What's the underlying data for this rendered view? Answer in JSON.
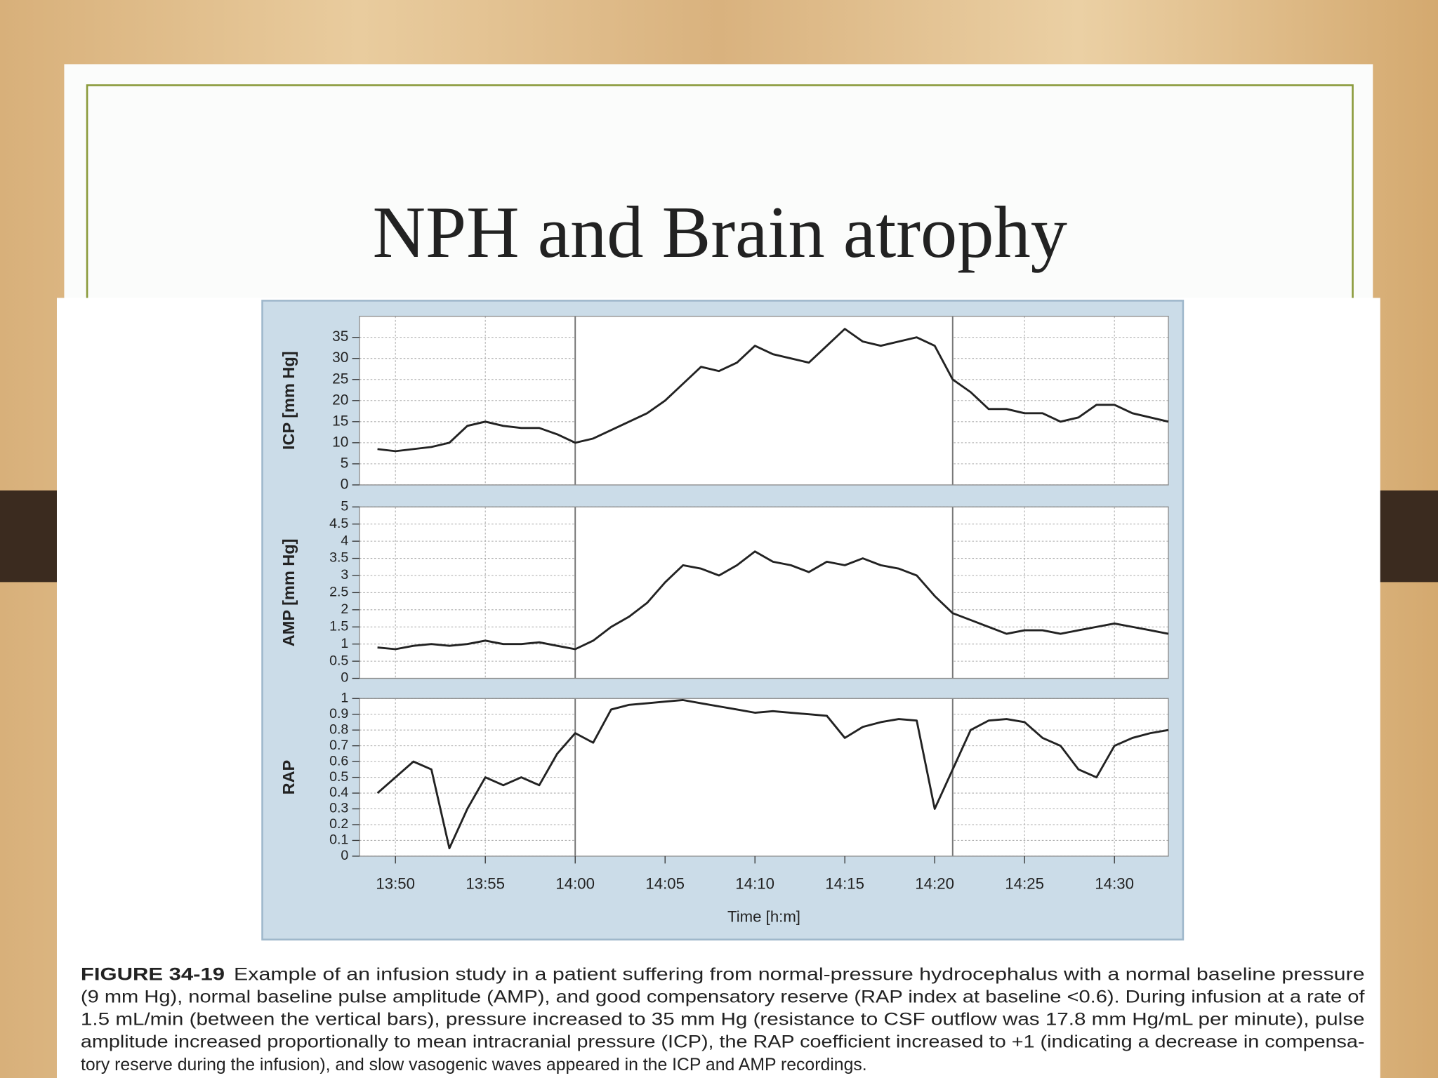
{
  "slide": {
    "title": "NPH and Brain atrophy"
  },
  "chart_data": [
    {
      "type": "line",
      "ylabel": "ICP [mm Hg]",
      "x": [
        "13:49",
        "13:50",
        "13:51",
        "13:52",
        "13:53",
        "13:54",
        "13:55",
        "13:56",
        "13:57",
        "13:58",
        "13:59",
        "14:00",
        "14:01",
        "14:02",
        "14:03",
        "14:04",
        "14:05",
        "14:06",
        "14:07",
        "14:08",
        "14:09",
        "14:10",
        "14:11",
        "14:12",
        "14:13",
        "14:14",
        "14:15",
        "14:16",
        "14:17",
        "14:18",
        "14:19",
        "14:20",
        "14:21",
        "14:22",
        "14:23",
        "14:24",
        "14:25",
        "14:26",
        "14:27",
        "14:28",
        "14:29",
        "14:30",
        "14:31",
        "14:32",
        "14:33"
      ],
      "values": [
        8.5,
        8,
        8.5,
        9,
        10,
        14,
        15,
        14,
        13.5,
        13.5,
        12,
        10,
        11,
        13,
        15,
        17,
        20,
        24,
        28,
        27,
        29,
        33,
        31,
        30,
        29,
        33,
        37,
        34,
        33,
        34,
        35,
        33,
        25,
        22,
        18,
        18,
        17,
        17,
        15,
        16,
        19,
        19,
        17,
        16,
        15
      ],
      "color": "#222222",
      "xlim": [
        "13:48",
        "14:33"
      ],
      "xticks": [
        "13:50",
        "13:55",
        "14:00",
        "14:05",
        "14:10",
        "14:15",
        "14:20",
        "14:25",
        "14:30"
      ],
      "ylim": [
        0,
        40
      ],
      "yticks": [
        0,
        5,
        10,
        15,
        20,
        25,
        30,
        35
      ],
      "grid": true,
      "highlight": [
        "14:00",
        "14:21"
      ]
    },
    {
      "type": "line",
      "ylabel": "AMP [mm Hg]",
      "x": [
        "13:49",
        "13:50",
        "13:51",
        "13:52",
        "13:53",
        "13:54",
        "13:55",
        "13:56",
        "13:57",
        "13:58",
        "13:59",
        "14:00",
        "14:01",
        "14:02",
        "14:03",
        "14:04",
        "14:05",
        "14:06",
        "14:07",
        "14:08",
        "14:09",
        "14:10",
        "14:11",
        "14:12",
        "14:13",
        "14:14",
        "14:15",
        "14:16",
        "14:17",
        "14:18",
        "14:19",
        "14:20",
        "14:21",
        "14:22",
        "14:23",
        "14:24",
        "14:25",
        "14:26",
        "14:27",
        "14:28",
        "14:29",
        "14:30",
        "14:31",
        "14:32",
        "14:33"
      ],
      "values": [
        0.9,
        0.85,
        0.95,
        1,
        0.95,
        1,
        1.1,
        1,
        1,
        1.05,
        0.95,
        0.85,
        1.1,
        1.5,
        1.8,
        2.2,
        2.8,
        3.3,
        3.2,
        3.0,
        3.3,
        3.7,
        3.4,
        3.3,
        3.1,
        3.4,
        3.3,
        3.5,
        3.3,
        3.2,
        3.0,
        2.4,
        1.9,
        1.7,
        1.5,
        1.3,
        1.4,
        1.4,
        1.3,
        1.4,
        1.5,
        1.6,
        1.5,
        1.4,
        1.3
      ],
      "color": "#222222",
      "xlim": [
        "13:48",
        "14:33"
      ],
      "xticks": [
        "13:50",
        "13:55",
        "14:00",
        "14:05",
        "14:10",
        "14:15",
        "14:20",
        "14:25",
        "14:30"
      ],
      "ylim": [
        0,
        5
      ],
      "yticks": [
        0,
        0.5,
        1,
        1.5,
        2,
        2.5,
        3,
        3.5,
        4,
        4.5,
        5
      ],
      "grid": true,
      "highlight": [
        "14:00",
        "14:21"
      ]
    },
    {
      "type": "line",
      "ylabel": "RAP",
      "xlabel": "Time [h:m]",
      "x": [
        "13:49",
        "13:50",
        "13:51",
        "13:52",
        "13:53",
        "13:54",
        "13:55",
        "13:56",
        "13:57",
        "13:58",
        "13:59",
        "14:00",
        "14:01",
        "14:02",
        "14:03",
        "14:04",
        "14:05",
        "14:06",
        "14:07",
        "14:08",
        "14:09",
        "14:10",
        "14:11",
        "14:12",
        "14:13",
        "14:14",
        "14:15",
        "14:16",
        "14:17",
        "14:18",
        "14:19",
        "14:20",
        "14:21",
        "14:22",
        "14:23",
        "14:24",
        "14:25",
        "14:26",
        "14:27",
        "14:28",
        "14:29",
        "14:30",
        "14:31",
        "14:32",
        "14:33"
      ],
      "values": [
        0.4,
        0.5,
        0.6,
        0.55,
        0.05,
        0.3,
        0.5,
        0.45,
        0.5,
        0.45,
        0.65,
        0.78,
        0.72,
        0.93,
        0.96,
        0.97,
        0.98,
        0.99,
        0.97,
        0.95,
        0.93,
        0.91,
        0.92,
        0.91,
        0.9,
        0.89,
        0.75,
        0.82,
        0.85,
        0.87,
        0.86,
        0.3,
        0.55,
        0.8,
        0.86,
        0.87,
        0.85,
        0.75,
        0.7,
        0.55,
        0.5,
        0.7,
        0.75,
        0.78,
        0.8
      ],
      "color": "#222222",
      "xlim": [
        "13:48",
        "14:33"
      ],
      "xticks": [
        "13:50",
        "13:55",
        "14:00",
        "14:05",
        "14:10",
        "14:15",
        "14:20",
        "14:25",
        "14:30"
      ],
      "xtick_labels": true,
      "ylim": [
        0,
        1
      ],
      "yticks": [
        0,
        0.1,
        0.2,
        0.3,
        0.4,
        0.5,
        0.6,
        0.7,
        0.8,
        0.9,
        1
      ],
      "grid": true,
      "highlight": [
        "14:00",
        "14:21"
      ]
    }
  ],
  "caption": {
    "label": "FIGURE 34-19",
    "lines": [
      "Example of an infusion study in a patient suffering from normal-pressure hydrocephalus with a normal baseline pressure",
      "(9 mm Hg), normal baseline pulse amplitude (AMP), and good compensatory reserve (RAP index at baseline <0.6). During infusion at a rate of",
      "1.5 mL/min (between the vertical bars), pressure increased to 35 mm Hg (resistance to CSF outflow was 17.8 mm Hg/mL per minute), pulse",
      "amplitude increased proportionally to mean intracranial pressure (ICP), the RAP coefficient increased to +1 (indicating a decrease in compensa-",
      "tory reserve during the infusion), and slow vasogenic waves appeared in the ICP and AMP recordings."
    ]
  }
}
